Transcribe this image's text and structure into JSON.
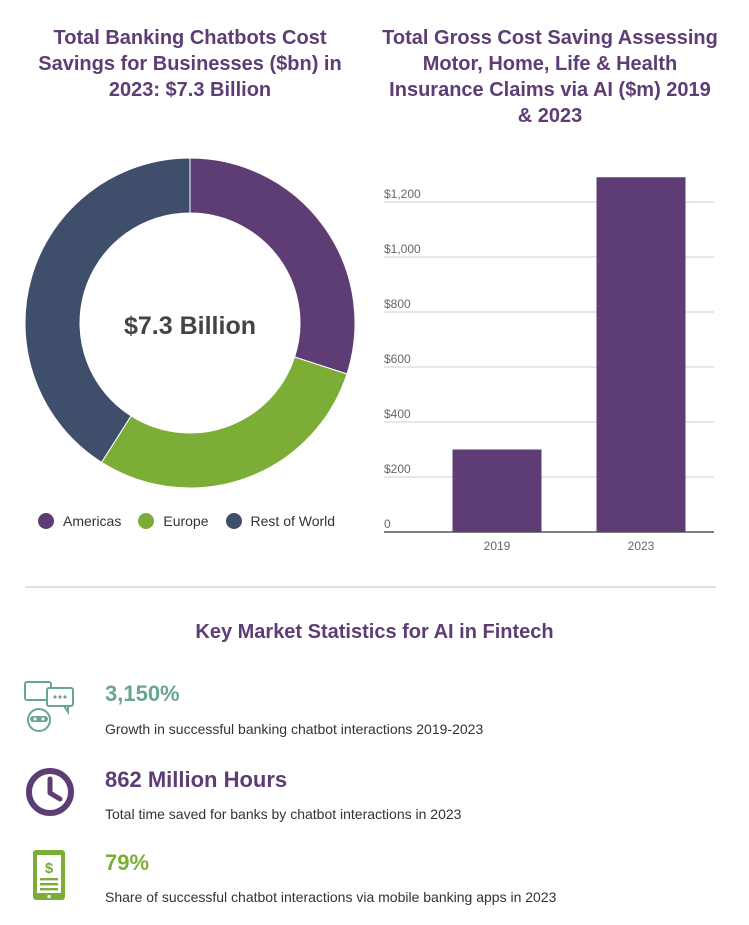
{
  "colors": {
    "purple": "#5d3d74",
    "green": "#7bad37",
    "navy": "#3f4f6b",
    "teal": "#6aa593"
  },
  "chart_data": [
    {
      "type": "pie",
      "title": "Total Banking Chatbots Cost Savings for Businesses ($bn) in 2023: $7.3 Billion",
      "center_label": "$7.3 Billion",
      "donut": true,
      "categories": [
        "Americas",
        "Europe",
        "Rest of World"
      ],
      "shares": [
        0.3,
        0.29,
        0.41
      ],
      "colors": [
        "#5d3d74",
        "#7bad37",
        "#3f4f6b"
      ],
      "legend": "bottom"
    },
    {
      "type": "bar",
      "title": "Total Gross Cost Saving Assessing Motor, Home, Life & Health Insurance Claims via AI ($m) 2019 & 2023",
      "categories": [
        "2019",
        "2023"
      ],
      "values": [
        300,
        1290
      ],
      "ylim": [
        0,
        1290
      ],
      "yticks": [
        0,
        200,
        400,
        600,
        800,
        1000,
        1200
      ],
      "ytick_labels": [
        "0",
        "$200",
        "$400",
        "$600",
        "$800",
        "$1,000",
        "$1,200"
      ],
      "grid": true,
      "color": "#5d3d74"
    }
  ],
  "section_title": "Key Market Statistics for AI in Fintech",
  "stats": [
    {
      "value": "3,150%",
      "description": "Growth in successful banking chatbot interactions 2019-2023",
      "icon": "chatbot-icon",
      "color": "#6aa593"
    },
    {
      "value": "862 Million Hours",
      "description": "Total time saved for banks by chatbot interactions in 2023",
      "icon": "clock-icon",
      "color": "#5d3d74"
    },
    {
      "value": "79%",
      "description": "Share of successful chatbot interactions via mobile banking apps in 2023",
      "icon": "mobile-banking-icon",
      "color": "#7bad37"
    }
  ]
}
